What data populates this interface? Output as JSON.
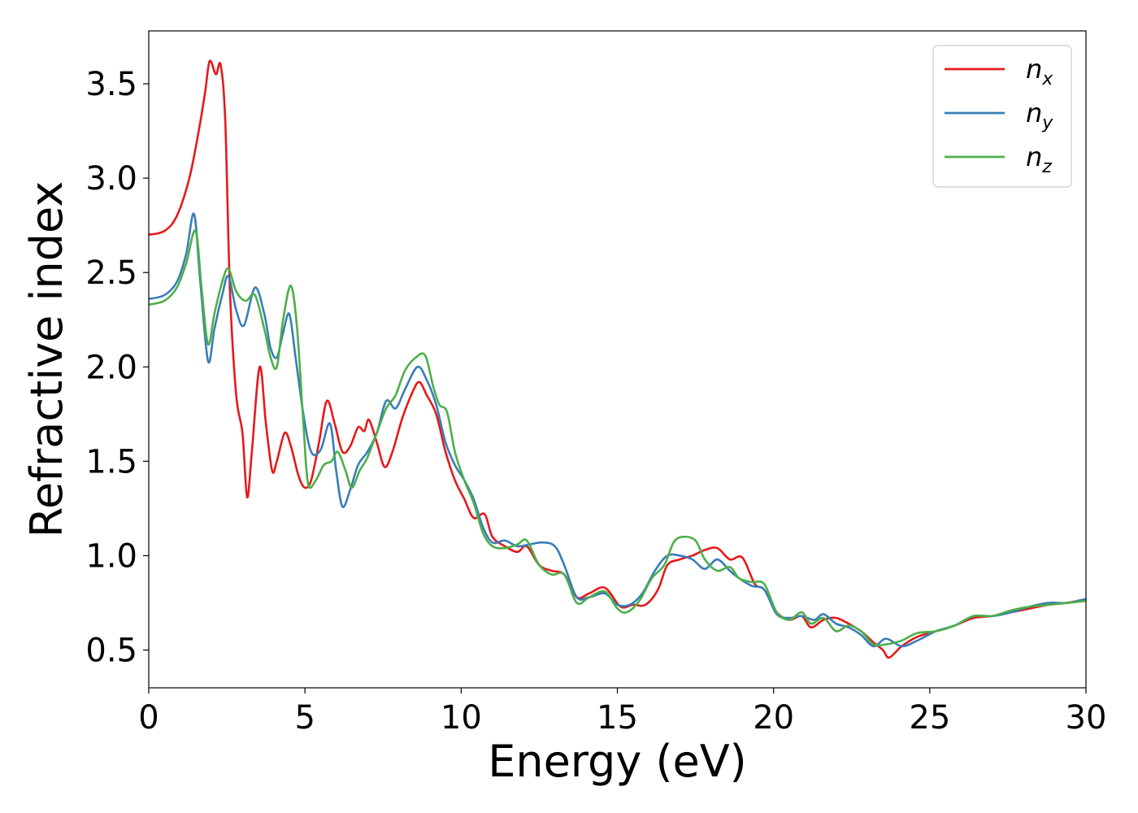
{
  "chart_data": {
    "type": "line",
    "xlabel": "Energy (eV)",
    "ylabel": "Refractive index",
    "xlim": [
      0,
      30
    ],
    "ylim": [
      0.3,
      3.78
    ],
    "xticks": [
      0,
      5,
      10,
      15,
      20,
      25,
      30
    ],
    "xtick_labels": [
      "0",
      "5",
      "10",
      "15",
      "20",
      "25",
      "30"
    ],
    "yticks": [
      0.5,
      1.0,
      1.5,
      2.0,
      2.5,
      3.0,
      3.5
    ],
    "ytick_labels": [
      "0.5",
      "1.0",
      "1.5",
      "2.0",
      "2.5",
      "3.0",
      "3.5"
    ],
    "grid": false,
    "legend_position": "top-right",
    "series": [
      {
        "name": "n",
        "subscript": "x",
        "color": "#e41a1c",
        "points": [
          [
            0,
            2.7
          ],
          [
            0.5,
            2.72
          ],
          [
            0.9,
            2.8
          ],
          [
            1.3,
            3.0
          ],
          [
            1.6,
            3.25
          ],
          [
            1.8,
            3.45
          ],
          [
            1.95,
            3.62
          ],
          [
            2.15,
            3.55
          ],
          [
            2.3,
            3.6
          ],
          [
            2.45,
            3.3
          ],
          [
            2.6,
            2.4
          ],
          [
            2.8,
            1.85
          ],
          [
            3.0,
            1.65
          ],
          [
            3.15,
            1.31
          ],
          [
            3.3,
            1.55
          ],
          [
            3.55,
            2.0
          ],
          [
            3.75,
            1.7
          ],
          [
            3.95,
            1.45
          ],
          [
            4.1,
            1.5
          ],
          [
            4.35,
            1.65
          ],
          [
            4.55,
            1.58
          ],
          [
            4.8,
            1.42
          ],
          [
            5.0,
            1.36
          ],
          [
            5.2,
            1.4
          ],
          [
            5.45,
            1.6
          ],
          [
            5.7,
            1.82
          ],
          [
            5.95,
            1.7
          ],
          [
            6.2,
            1.55
          ],
          [
            6.45,
            1.58
          ],
          [
            6.7,
            1.68
          ],
          [
            6.9,
            1.66
          ],
          [
            7.05,
            1.72
          ],
          [
            7.3,
            1.6
          ],
          [
            7.55,
            1.47
          ],
          [
            7.8,
            1.55
          ],
          [
            8.1,
            1.72
          ],
          [
            8.4,
            1.85
          ],
          [
            8.65,
            1.92
          ],
          [
            8.9,
            1.85
          ],
          [
            9.2,
            1.75
          ],
          [
            9.5,
            1.55
          ],
          [
            9.8,
            1.4
          ],
          [
            10.1,
            1.3
          ],
          [
            10.4,
            1.2
          ],
          [
            10.75,
            1.22
          ],
          [
            11.0,
            1.1
          ],
          [
            11.4,
            1.05
          ],
          [
            11.8,
            1.02
          ],
          [
            12.1,
            1.05
          ],
          [
            12.5,
            0.95
          ],
          [
            12.9,
            0.92
          ],
          [
            13.3,
            0.9
          ],
          [
            13.7,
            0.78
          ],
          [
            14.1,
            0.8
          ],
          [
            14.6,
            0.83
          ],
          [
            15.1,
            0.73
          ],
          [
            15.5,
            0.74
          ],
          [
            15.9,
            0.74
          ],
          [
            16.3,
            0.82
          ],
          [
            16.6,
            0.95
          ],
          [
            17.0,
            0.98
          ],
          [
            17.4,
            1.0
          ],
          [
            17.8,
            1.03
          ],
          [
            18.2,
            1.04
          ],
          [
            18.6,
            0.98
          ],
          [
            19.0,
            0.99
          ],
          [
            19.4,
            0.85
          ],
          [
            19.7,
            0.82
          ],
          [
            20.1,
            0.7
          ],
          [
            20.5,
            0.66
          ],
          [
            20.9,
            0.68
          ],
          [
            21.2,
            0.62
          ],
          [
            21.6,
            0.66
          ],
          [
            22.0,
            0.67
          ],
          [
            22.4,
            0.64
          ],
          [
            22.8,
            0.6
          ],
          [
            23.2,
            0.54
          ],
          [
            23.5,
            0.5
          ],
          [
            23.7,
            0.46
          ],
          [
            24.1,
            0.52
          ],
          [
            24.6,
            0.57
          ],
          [
            25.2,
            0.6
          ],
          [
            25.8,
            0.63
          ],
          [
            26.4,
            0.67
          ],
          [
            27.0,
            0.68
          ],
          [
            27.6,
            0.7
          ],
          [
            28.2,
            0.72
          ],
          [
            28.8,
            0.74
          ],
          [
            29.4,
            0.75
          ],
          [
            30.0,
            0.77
          ]
        ]
      },
      {
        "name": "n",
        "subscript": "y",
        "color": "#377eb8",
        "points": [
          [
            0,
            2.36
          ],
          [
            0.5,
            2.38
          ],
          [
            0.9,
            2.45
          ],
          [
            1.2,
            2.6
          ],
          [
            1.45,
            2.81
          ],
          [
            1.65,
            2.45
          ],
          [
            1.9,
            2.03
          ],
          [
            2.1,
            2.2
          ],
          [
            2.35,
            2.38
          ],
          [
            2.55,
            2.48
          ],
          [
            2.8,
            2.3
          ],
          [
            3.05,
            2.22
          ],
          [
            3.4,
            2.42
          ],
          [
            3.7,
            2.28
          ],
          [
            3.9,
            2.1
          ],
          [
            4.1,
            2.05
          ],
          [
            4.3,
            2.18
          ],
          [
            4.5,
            2.28
          ],
          [
            4.7,
            2.05
          ],
          [
            4.95,
            1.75
          ],
          [
            5.2,
            1.55
          ],
          [
            5.5,
            1.56
          ],
          [
            5.8,
            1.7
          ],
          [
            6.0,
            1.45
          ],
          [
            6.2,
            1.26
          ],
          [
            6.45,
            1.35
          ],
          [
            6.7,
            1.48
          ],
          [
            7.0,
            1.55
          ],
          [
            7.3,
            1.65
          ],
          [
            7.6,
            1.82
          ],
          [
            7.9,
            1.78
          ],
          [
            8.2,
            1.88
          ],
          [
            8.6,
            2.0
          ],
          [
            8.9,
            1.93
          ],
          [
            9.2,
            1.8
          ],
          [
            9.5,
            1.6
          ],
          [
            9.8,
            1.48
          ],
          [
            10.1,
            1.4
          ],
          [
            10.4,
            1.3
          ],
          [
            10.7,
            1.15
          ],
          [
            11.0,
            1.07
          ],
          [
            11.4,
            1.08
          ],
          [
            11.8,
            1.05
          ],
          [
            12.2,
            1.06
          ],
          [
            12.6,
            1.07
          ],
          [
            13.0,
            1.05
          ],
          [
            13.3,
            0.95
          ],
          [
            13.7,
            0.78
          ],
          [
            14.1,
            0.78
          ],
          [
            14.6,
            0.8
          ],
          [
            15.0,
            0.74
          ],
          [
            15.4,
            0.74
          ],
          [
            15.8,
            0.8
          ],
          [
            16.2,
            0.92
          ],
          [
            16.6,
            1.0
          ],
          [
            17.0,
            1.0
          ],
          [
            17.4,
            0.98
          ],
          [
            17.8,
            0.93
          ],
          [
            18.2,
            0.98
          ],
          [
            18.6,
            0.92
          ],
          [
            18.9,
            0.88
          ],
          [
            19.3,
            0.84
          ],
          [
            19.7,
            0.82
          ],
          [
            20.1,
            0.69
          ],
          [
            20.5,
            0.67
          ],
          [
            20.9,
            0.68
          ],
          [
            21.3,
            0.66
          ],
          [
            21.6,
            0.69
          ],
          [
            22.0,
            0.64
          ],
          [
            22.4,
            0.62
          ],
          [
            22.8,
            0.58
          ],
          [
            23.2,
            0.52
          ],
          [
            23.6,
            0.56
          ],
          [
            24.1,
            0.52
          ],
          [
            24.6,
            0.55
          ],
          [
            25.2,
            0.6
          ],
          [
            25.8,
            0.63
          ],
          [
            26.4,
            0.68
          ],
          [
            27.0,
            0.68
          ],
          [
            27.6,
            0.7
          ],
          [
            28.2,
            0.73
          ],
          [
            28.8,
            0.75
          ],
          [
            29.4,
            0.75
          ],
          [
            30.0,
            0.77
          ]
        ]
      },
      {
        "name": "n",
        "subscript": "z",
        "color": "#4daf4a",
        "points": [
          [
            0,
            2.33
          ],
          [
            0.5,
            2.35
          ],
          [
            0.9,
            2.42
          ],
          [
            1.2,
            2.55
          ],
          [
            1.5,
            2.72
          ],
          [
            1.7,
            2.4
          ],
          [
            1.9,
            2.12
          ],
          [
            2.1,
            2.28
          ],
          [
            2.35,
            2.45
          ],
          [
            2.55,
            2.52
          ],
          [
            2.8,
            2.4
          ],
          [
            3.1,
            2.35
          ],
          [
            3.4,
            2.38
          ],
          [
            3.7,
            2.2
          ],
          [
            3.9,
            2.05
          ],
          [
            4.1,
            2.0
          ],
          [
            4.3,
            2.25
          ],
          [
            4.55,
            2.43
          ],
          [
            4.75,
            2.2
          ],
          [
            4.95,
            1.7
          ],
          [
            5.1,
            1.38
          ],
          [
            5.35,
            1.4
          ],
          [
            5.6,
            1.48
          ],
          [
            5.85,
            1.5
          ],
          [
            6.05,
            1.55
          ],
          [
            6.3,
            1.45
          ],
          [
            6.5,
            1.36
          ],
          [
            6.75,
            1.45
          ],
          [
            7.0,
            1.52
          ],
          [
            7.3,
            1.65
          ],
          [
            7.6,
            1.78
          ],
          [
            7.9,
            1.85
          ],
          [
            8.2,
            1.98
          ],
          [
            8.55,
            2.05
          ],
          [
            8.85,
            2.06
          ],
          [
            9.1,
            1.9
          ],
          [
            9.3,
            1.8
          ],
          [
            9.55,
            1.76
          ],
          [
            9.8,
            1.55
          ],
          [
            10.1,
            1.4
          ],
          [
            10.4,
            1.28
          ],
          [
            10.7,
            1.12
          ],
          [
            11.0,
            1.05
          ],
          [
            11.4,
            1.04
          ],
          [
            11.8,
            1.06
          ],
          [
            12.1,
            1.08
          ],
          [
            12.5,
            0.95
          ],
          [
            12.9,
            0.9
          ],
          [
            13.3,
            0.9
          ],
          [
            13.7,
            0.75
          ],
          [
            14.1,
            0.78
          ],
          [
            14.6,
            0.81
          ],
          [
            15.0,
            0.72
          ],
          [
            15.3,
            0.7
          ],
          [
            15.7,
            0.76
          ],
          [
            16.1,
            0.88
          ],
          [
            16.5,
            0.95
          ],
          [
            16.8,
            1.07
          ],
          [
            17.1,
            1.1
          ],
          [
            17.5,
            1.08
          ],
          [
            17.8,
            0.98
          ],
          [
            18.2,
            0.92
          ],
          [
            18.6,
            0.94
          ],
          [
            18.9,
            0.88
          ],
          [
            19.3,
            0.86
          ],
          [
            19.7,
            0.85
          ],
          [
            20.1,
            0.7
          ],
          [
            20.5,
            0.66
          ],
          [
            20.9,
            0.7
          ],
          [
            21.2,
            0.64
          ],
          [
            21.6,
            0.67
          ],
          [
            22.0,
            0.6
          ],
          [
            22.4,
            0.63
          ],
          [
            22.8,
            0.6
          ],
          [
            23.2,
            0.53
          ],
          [
            23.6,
            0.53
          ],
          [
            24.1,
            0.55
          ],
          [
            24.6,
            0.59
          ],
          [
            25.2,
            0.6
          ],
          [
            25.8,
            0.63
          ],
          [
            26.4,
            0.68
          ],
          [
            27.0,
            0.68
          ],
          [
            27.6,
            0.71
          ],
          [
            28.2,
            0.73
          ],
          [
            28.8,
            0.74
          ],
          [
            29.4,
            0.75
          ],
          [
            30.0,
            0.76
          ]
        ]
      }
    ]
  }
}
